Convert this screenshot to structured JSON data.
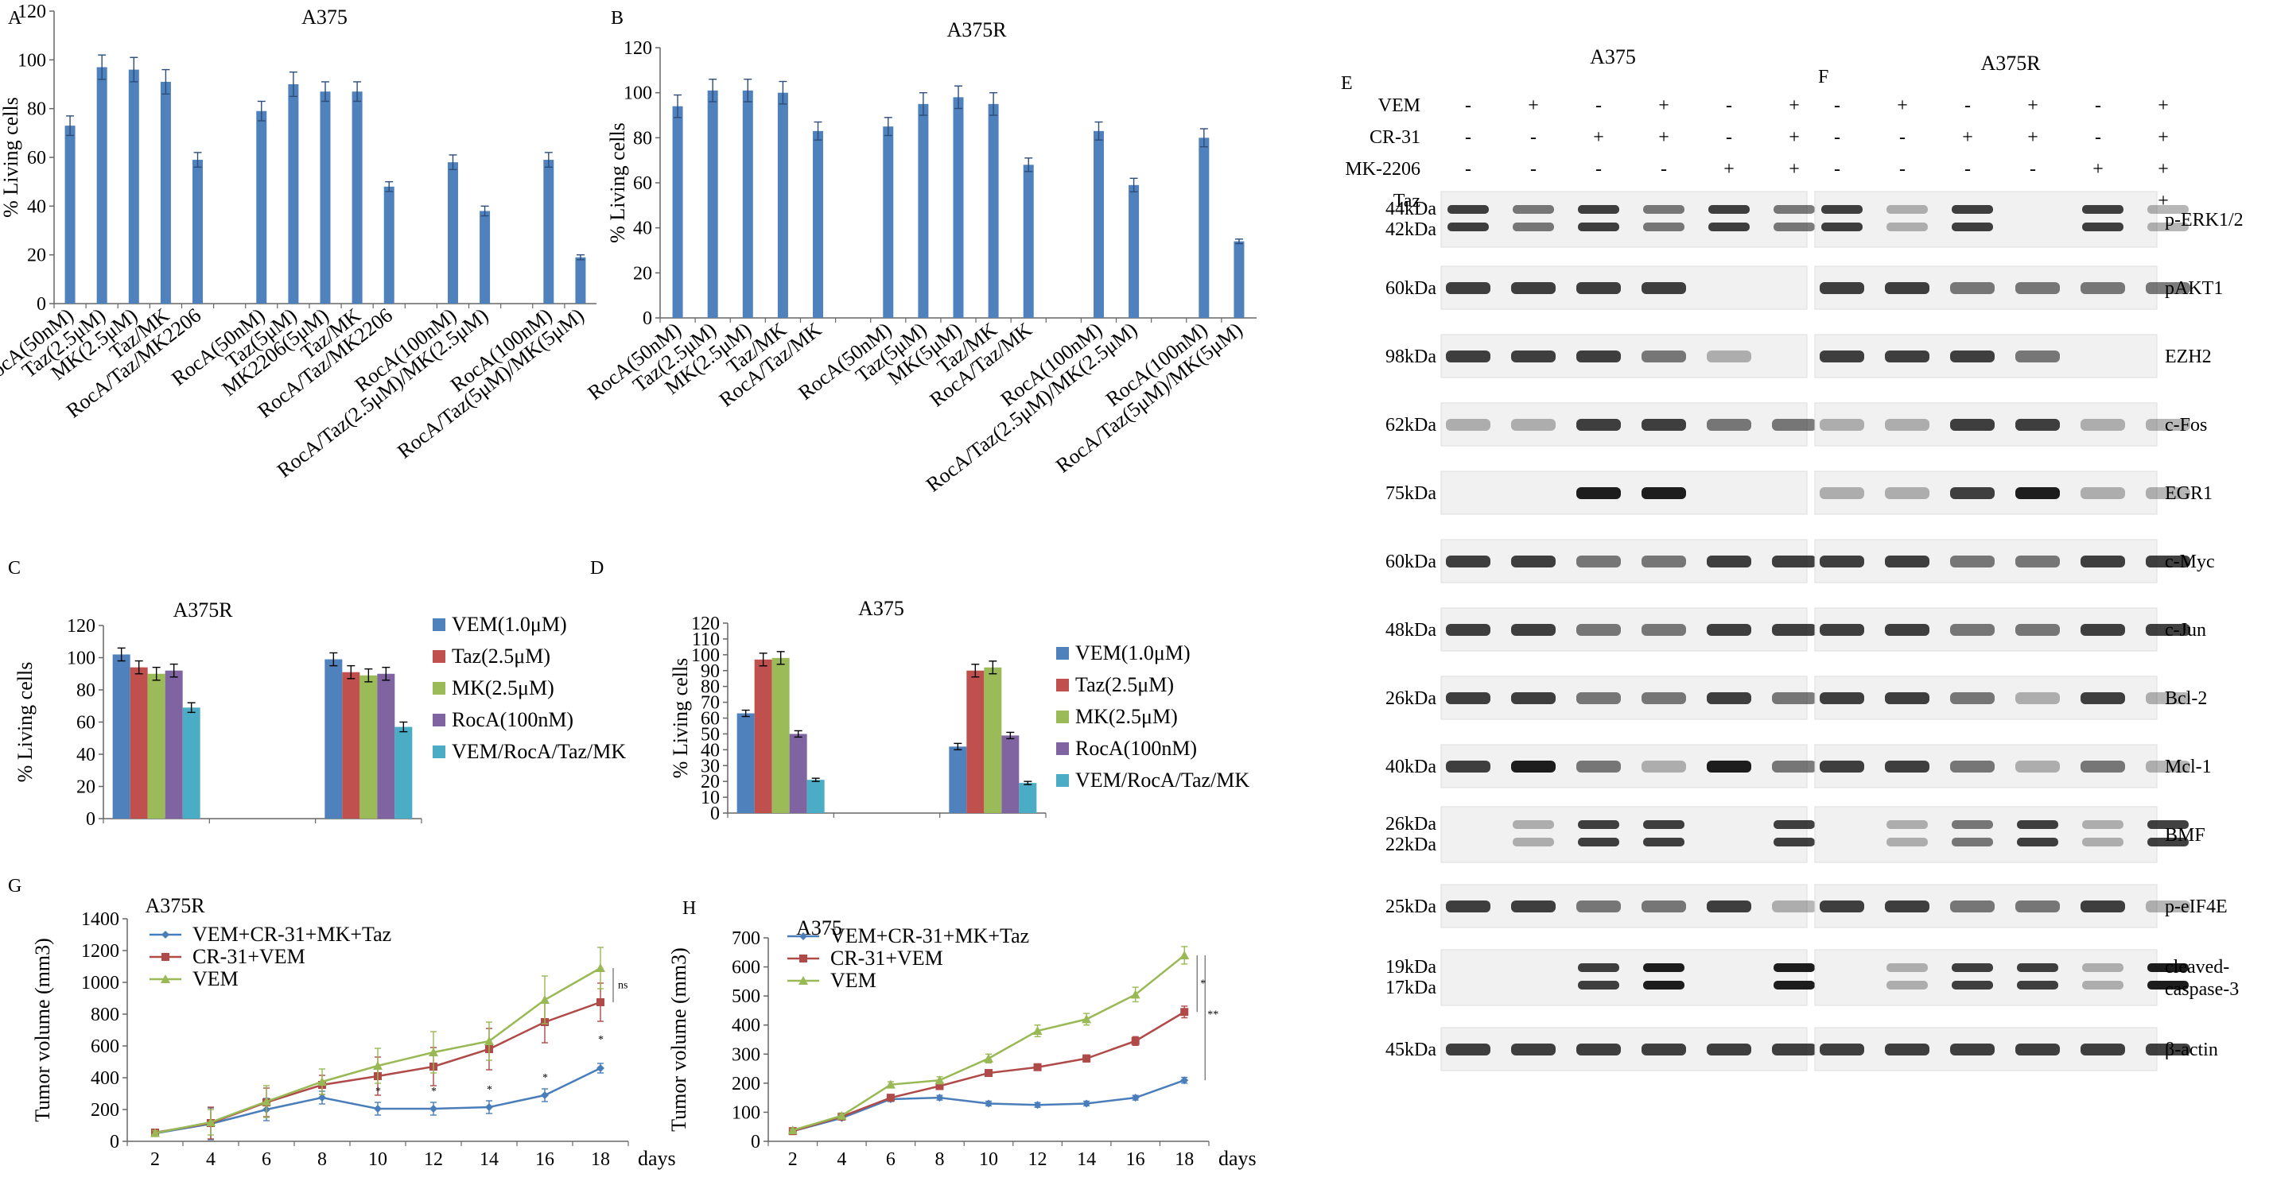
{
  "colors": {
    "blue": "#4F81BD",
    "red": "#C0504D",
    "green": "#9BBB59",
    "purple": "#8064A2",
    "cyan": "#4BACC6",
    "line_blue": "#4A7EBB",
    "line_red": "#B04A48",
    "line_green": "#98B954"
  },
  "chart_data": [
    {
      "id": "A",
      "panel": "A",
      "type": "bar",
      "title": "A375",
      "ylabel": "% Living cells",
      "ylim": [
        0,
        120
      ],
      "yticks": [
        0,
        20,
        40,
        60,
        80,
        100,
        120
      ],
      "categories": [
        "RocA(50nM)",
        "Taz(2.5μM)",
        "MK(2.5μM)",
        "Taz/MK",
        "RocA/Taz/MK2206",
        "",
        "RocA(50nM)",
        "Taz(5μM)",
        "MK2206(5μM)",
        "Taz/MK",
        "RocA/Taz/MK2206",
        "",
        "RocA(100nM)",
        "RocA/Taz(2.5μM)/MK(2.5μM)",
        "",
        "RocA(100nM)",
        "RocA/Taz(5μM)/MK(5μM)"
      ],
      "values": [
        73,
        97,
        96,
        91,
        59,
        null,
        79,
        90,
        87,
        87,
        48,
        null,
        58,
        38,
        null,
        59,
        19
      ],
      "errors": [
        4,
        5,
        5,
        5,
        3,
        null,
        4,
        5,
        4,
        4,
        2,
        null,
        3,
        2,
        null,
        3,
        1
      ],
      "grid": false
    },
    {
      "id": "B",
      "panel": "B",
      "type": "bar",
      "title": "A375R",
      "ylabel": "% Living cells",
      "ylim": [
        0,
        120
      ],
      "yticks": [
        0,
        20,
        40,
        60,
        80,
        100,
        120
      ],
      "categories": [
        "RocA(50nM)",
        "Taz(2.5μM)",
        "MK(2.5μM)",
        "Taz/MK",
        "RocA/Taz/MK",
        "",
        "RocA(50nM)",
        "Taz(5μM)",
        "MK(5μM)",
        "Taz/MK",
        "RocA/Taz/MK",
        "",
        "RocA(100nM)",
        "RocA/Taz(2.5μM)/MK(2.5μM)",
        "",
        "RocA(100nM)",
        "RocA/Taz(5μM)/MK(5μM)"
      ],
      "values": [
        94,
        101,
        101,
        100,
        83,
        null,
        85,
        95,
        98,
        95,
        68,
        null,
        83,
        59,
        null,
        80,
        34
      ],
      "errors": [
        5,
        5,
        5,
        5,
        4,
        null,
        4,
        5,
        5,
        5,
        3,
        null,
        4,
        3,
        null,
        4,
        1
      ],
      "grid": false
    },
    {
      "id": "C",
      "panel": "C",
      "type": "bar",
      "title": "A375R",
      "ylabel": "% Living cells",
      "ylim": [
        0,
        120
      ],
      "yticks": [
        0,
        20,
        40,
        60,
        80,
        100,
        120
      ],
      "categories": [
        "",
        "",
        ""
      ],
      "series": [
        {
          "name": "VEM(1.0μM)",
          "color": "#4F81BD",
          "values": [
            102,
            null,
            99
          ],
          "errors": [
            4,
            null,
            4
          ]
        },
        {
          "name": "Taz(2.5μM)",
          "color": "#C0504D",
          "values": [
            94,
            null,
            91
          ],
          "errors": [
            4,
            null,
            4
          ]
        },
        {
          "name": "MK(2.5μM)",
          "color": "#9BBB59",
          "values": [
            90,
            null,
            89
          ],
          "errors": [
            4,
            null,
            4
          ]
        },
        {
          "name": "RocA(100nM)",
          "color": "#8064A2",
          "values": [
            92,
            null,
            90
          ],
          "errors": [
            4,
            null,
            4
          ]
        },
        {
          "name": "VEM/RocA/Taz/MK",
          "color": "#4BACC6",
          "values": [
            69,
            null,
            57
          ],
          "errors": [
            3,
            null,
            3
          ]
        }
      ],
      "legend": "right",
      "grid": false
    },
    {
      "id": "D",
      "panel": "D",
      "type": "bar",
      "title": "A375",
      "ylabel": "% Living cells",
      "ylim": [
        0,
        120
      ],
      "yticks": [
        0,
        10,
        20,
        30,
        40,
        50,
        60,
        70,
        80,
        90,
        100,
        110,
        120
      ],
      "categories": [
        "",
        "",
        ""
      ],
      "series": [
        {
          "name": "VEM(1.0μM)",
          "color": "#4F81BD",
          "values": [
            63,
            null,
            42
          ],
          "errors": [
            2,
            null,
            2
          ]
        },
        {
          "name": "Taz(2.5μM)",
          "color": "#C0504D",
          "values": [
            97,
            null,
            90
          ],
          "errors": [
            4,
            null,
            4
          ]
        },
        {
          "name": "MK(2.5μM)",
          "color": "#9BBB59",
          "values": [
            98,
            null,
            92
          ],
          "errors": [
            4,
            null,
            4
          ]
        },
        {
          "name": "RocA(100nM)",
          "color": "#8064A2",
          "values": [
            50,
            null,
            49
          ],
          "errors": [
            2,
            null,
            2
          ]
        },
        {
          "name": "VEM/RocA/Taz/MK",
          "color": "#4BACC6",
          "values": [
            21,
            null,
            19
          ],
          "errors": [
            1,
            null,
            1
          ]
        }
      ],
      "legend": "right",
      "grid": false
    },
    {
      "id": "G",
      "panel": "G",
      "type": "line",
      "title": "A375R",
      "ylabel": "Tumor volume (mm3)",
      "xlabel": "days",
      "x": [
        2,
        4,
        6,
        8,
        10,
        12,
        14,
        16,
        18
      ],
      "ylim": [
        0,
        1400
      ],
      "yticks": [
        0,
        200,
        400,
        600,
        800,
        1000,
        1200,
        1400
      ],
      "series": [
        {
          "name": "VEM+CR-31+MK+Taz",
          "color": "#4A7EBB",
          "marker": "diamond",
          "values": [
            50,
            110,
            200,
            275,
            205,
            205,
            215,
            290,
            460
          ],
          "errors": [
            15,
            100,
            70,
            40,
            40,
            40,
            40,
            40,
            30
          ]
        },
        {
          "name": "CR-31+VEM",
          "color": "#B04A48",
          "marker": "square",
          "values": [
            55,
            115,
            245,
            355,
            410,
            470,
            580,
            750,
            875
          ],
          "errors": [
            15,
            100,
            90,
            60,
            120,
            120,
            130,
            130,
            120
          ]
        },
        {
          "name": "VEM",
          "color": "#98B954",
          "marker": "triangle",
          "values": [
            52,
            120,
            250,
            375,
            475,
            560,
            630,
            890,
            1090
          ],
          "errors": [
            15,
            80,
            100,
            80,
            110,
            130,
            120,
            150,
            130
          ]
        }
      ],
      "annotations": [
        "*",
        "*",
        "*",
        "*",
        "*",
        "ns"
      ],
      "legend": "top-left",
      "grid": false
    },
    {
      "id": "H",
      "panel": "H",
      "type": "line",
      "title": "A375",
      "ylabel": "Tumor volume (mm3)",
      "xlabel": "days",
      "x": [
        2,
        4,
        6,
        8,
        10,
        12,
        14,
        16,
        18
      ],
      "ylim": [
        0,
        700
      ],
      "yticks": [
        0,
        100,
        200,
        300,
        400,
        500,
        600,
        700
      ],
      "series": [
        {
          "name": "VEM+CR-31+MK+Taz",
          "color": "#4A7EBB",
          "marker": "diamond",
          "values": [
            35,
            80,
            145,
            150,
            130,
            125,
            130,
            150,
            210
          ],
          "errors": [
            4,
            6,
            8,
            8,
            8,
            8,
            8,
            8,
            10
          ]
        },
        {
          "name": "CR-31+VEM",
          "color": "#B04A48",
          "marker": "square",
          "values": [
            35,
            85,
            150,
            190,
            235,
            255,
            285,
            345,
            445
          ],
          "errors": [
            4,
            6,
            8,
            10,
            10,
            10,
            12,
            15,
            20
          ]
        },
        {
          "name": "VEM",
          "color": "#98B954",
          "marker": "triangle",
          "values": [
            38,
            88,
            195,
            210,
            285,
            380,
            420,
            505,
            640
          ],
          "errors": [
            4,
            6,
            10,
            12,
            15,
            20,
            20,
            25,
            30
          ]
        }
      ],
      "annotations": [
        "*",
        "**"
      ],
      "legend": "top-left",
      "grid": false
    }
  ],
  "letters": {
    "A": "A",
    "B": "B",
    "C": "C",
    "D": "D",
    "E": "E",
    "F": "F",
    "G": "G",
    "H": "H"
  },
  "blots": {
    "E_title": "A375",
    "F_title": "A375R",
    "treatments": [
      {
        "label": "VEM",
        "signs": [
          "-",
          "+",
          "-",
          "+",
          "-",
          "+"
        ]
      },
      {
        "label": "CR-31",
        "signs": [
          "-",
          "-",
          "+",
          "+",
          "-",
          "+"
        ]
      },
      {
        "label": "MK-2206",
        "signs": [
          "-",
          "-",
          "-",
          "-",
          "+",
          "+"
        ]
      },
      {
        "label": "Taz",
        "signs": [
          "-",
          "-",
          "-",
          "-",
          "+",
          "+"
        ]
      }
    ],
    "proteins": [
      {
        "name": "p-ERK1/2",
        "kda": [
          "44kDa",
          "42kDa"
        ],
        "E": [
          3,
          2,
          3,
          2,
          3,
          2
        ],
        "F": [
          3,
          1,
          3,
          0,
          3,
          1
        ]
      },
      {
        "name": "pAKT1",
        "kda": [
          "60kDa"
        ],
        "E": [
          3,
          3,
          3,
          3,
          0,
          0
        ],
        "F": [
          3,
          3,
          2,
          2,
          2,
          2
        ]
      },
      {
        "name": "EZH2",
        "kda": [
          "98kDa"
        ],
        "E": [
          3,
          3,
          3,
          2,
          1,
          0
        ],
        "F": [
          3,
          3,
          3,
          2,
          0,
          0
        ]
      },
      {
        "name": "c-Fos",
        "kda": [
          "62kDa"
        ],
        "E": [
          1,
          1,
          3,
          3,
          2,
          2
        ],
        "F": [
          1,
          1,
          3,
          3,
          1,
          1
        ]
      },
      {
        "name": "EGR1",
        "kda": [
          "75kDa"
        ],
        "E": [
          0,
          0,
          4,
          4,
          0,
          0
        ],
        "F": [
          1,
          1,
          3,
          4,
          1,
          1
        ]
      },
      {
        "name": "c-Myc",
        "kda": [
          "60kDa"
        ],
        "E": [
          3,
          3,
          2,
          2,
          3,
          3
        ],
        "F": [
          3,
          3,
          2,
          2,
          3,
          3
        ]
      },
      {
        "name": "c-Jun",
        "kda": [
          "48kDa"
        ],
        "E": [
          3,
          3,
          2,
          2,
          3,
          3
        ],
        "F": [
          3,
          3,
          2,
          2,
          3,
          3
        ]
      },
      {
        "name": "Bcl-2",
        "kda": [
          "26kDa"
        ],
        "E": [
          3,
          3,
          2,
          2,
          3,
          2
        ],
        "F": [
          3,
          3,
          2,
          1,
          3,
          1
        ]
      },
      {
        "name": "Mcl-1",
        "kda": [
          "40kDa"
        ],
        "E": [
          3,
          4,
          2,
          1,
          4,
          2
        ],
        "F": [
          3,
          3,
          2,
          1,
          2,
          1
        ]
      },
      {
        "name": "BMF",
        "kda": [
          "26kDa",
          "22kDa"
        ],
        "E": [
          0,
          1,
          3,
          3,
          0,
          3
        ],
        "F": [
          0,
          1,
          2,
          3,
          1,
          3
        ]
      },
      {
        "name": "p-eIF4E",
        "kda": [
          "25kDa"
        ],
        "E": [
          3,
          3,
          2,
          2,
          3,
          1
        ],
        "F": [
          3,
          3,
          2,
          2,
          3,
          1
        ]
      },
      {
        "name": "cleaved-\ncaspase-3",
        "kda": [
          "19kDa",
          "17kDa"
        ],
        "E": [
          0,
          0,
          3,
          4,
          0,
          4
        ],
        "F": [
          0,
          1,
          3,
          3,
          1,
          4
        ]
      },
      {
        "name": "β-actin",
        "kda": [
          "45kDa"
        ],
        "E": [
          3,
          3,
          3,
          3,
          3,
          3
        ],
        "F": [
          3,
          3,
          3,
          3,
          3,
          3
        ]
      }
    ]
  }
}
